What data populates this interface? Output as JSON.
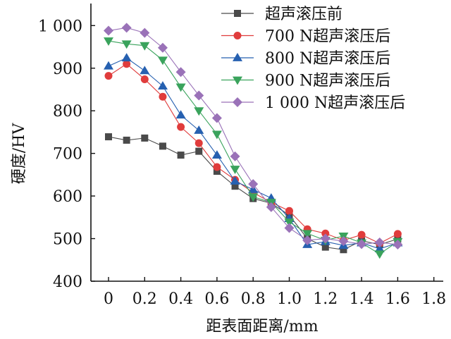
{
  "chart_data": {
    "type": "line",
    "title": "",
    "xlabel": "距表面距离/mm",
    "ylabel": "硬度/HV",
    "xlim": [
      -0.1,
      1.8
    ],
    "ylim": [
      400,
      1050
    ],
    "xticks": [
      0,
      0.2,
      0.4,
      0.6,
      0.8,
      1.0,
      1.2,
      1.4,
      1.6,
      1.8
    ],
    "xtick_labels": [
      "0",
      "0.2",
      "0.4",
      "0.6",
      "0.8",
      "1.0",
      "1.2",
      "1.4",
      "1.6",
      "1.8"
    ],
    "yticks": [
      400,
      500,
      600,
      700,
      800,
      900,
      1000
    ],
    "ytick_labels": [
      "400",
      "500",
      "600",
      "700",
      "800",
      "900",
      "1 000"
    ],
    "grid": false,
    "legend_position": "top-right",
    "x": [
      0,
      0.1,
      0.2,
      0.3,
      0.4,
      0.5,
      0.6,
      0.7,
      0.8,
      0.9,
      1.0,
      1.1,
      1.2,
      1.3,
      1.4,
      1.5,
      1.6
    ],
    "series": [
      {
        "name": "超声滚压前",
        "color": "#4a4a4a",
        "marker": "square",
        "values": [
          739,
          731,
          736,
          717,
          696,
          705,
          658,
          623,
          594,
          583,
          555,
          500,
          480,
          474,
          495,
          486,
          499
        ]
      },
      {
        "name": "700 N超声滚压后",
        "color": "#e03c3c",
        "marker": "circle",
        "values": [
          882,
          910,
          874,
          833,
          762,
          724,
          668,
          638,
          608,
          585,
          565,
          522,
          512,
          496,
          509,
          489,
          511
        ]
      },
      {
        "name": "800 N超声滚压后",
        "color": "#2660b0",
        "marker": "triangle-up",
        "values": [
          905,
          924,
          894,
          858,
          790,
          754,
          696,
          635,
          615,
          595,
          547,
          486,
          493,
          484,
          490,
          476,
          490
        ]
      },
      {
        "name": "900 N超声滚压后",
        "color": "#3aa35c",
        "marker": "triangle-down",
        "values": [
          964,
          957,
          953,
          919,
          856,
          800,
          745,
          663,
          598,
          585,
          539,
          512,
          496,
          506,
          490,
          464,
          493
        ]
      },
      {
        "name": "1 000 N超声滚压后",
        "color": "#9a72b8",
        "marker": "diamond",
        "values": [
          988,
          995,
          983,
          948,
          891,
          836,
          783,
          693,
          628,
          574,
          525,
          496,
          500,
          494,
          487,
          491,
          486
        ]
      }
    ]
  }
}
